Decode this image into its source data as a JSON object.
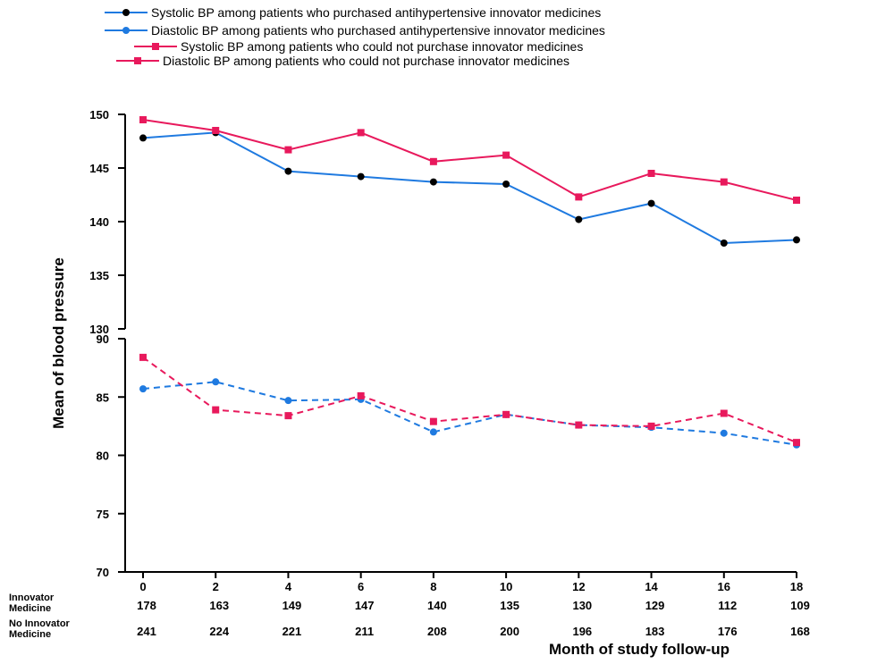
{
  "chart_data": {
    "type": "line",
    "xlabel": "Month of study follow-up",
    "ylabel": "Mean of blood pressure",
    "x": [
      0,
      2,
      4,
      6,
      8,
      10,
      12,
      14,
      16,
      18
    ],
    "xlim": [
      0,
      18
    ],
    "axis_break": true,
    "upper_ylim": [
      130,
      150
    ],
    "upper_yticks": [
      130,
      135,
      140,
      145,
      150
    ],
    "lower_ylim": [
      70,
      90
    ],
    "lower_yticks": [
      70,
      75,
      80,
      85,
      90
    ],
    "grid": false,
    "legend_position": "top",
    "series": [
      {
        "name": "Systolic BP among patients who purchased antihypertensive innovator medicines",
        "panel": "upper",
        "style": "solid",
        "line_color": "#1f7ae0",
        "marker_color": "#000000",
        "marker": "circle",
        "values": [
          147.8,
          148.3,
          144.7,
          144.2,
          143.7,
          143.5,
          140.2,
          141.7,
          138.0,
          138.3
        ]
      },
      {
        "name": "Diastolic BP among patients who purchased antihypertensive innovator medicines",
        "panel": "lower",
        "style": "dashed",
        "line_color": "#1f7ae0",
        "marker_color": "#1f7ae0",
        "marker": "circle",
        "values": [
          85.7,
          86.3,
          84.7,
          84.8,
          82.0,
          83.5,
          82.6,
          82.4,
          81.9,
          80.9
        ]
      },
      {
        "name": "Systolic BP among patients who could not purchase innovator medicines",
        "panel": "upper",
        "style": "solid",
        "line_color": "#e8195c",
        "marker_color": "#e8195c",
        "marker": "square",
        "values": [
          149.5,
          148.5,
          146.7,
          148.3,
          145.6,
          146.2,
          142.3,
          144.5,
          143.7,
          142.0
        ]
      },
      {
        "name": "Diastolic BP among patients who could not purchase innovator medicines",
        "panel": "lower",
        "style": "dashed",
        "line_color": "#e8195c",
        "marker_color": "#e8195c",
        "marker": "square",
        "values": [
          88.4,
          83.9,
          83.4,
          85.1,
          82.9,
          83.5,
          82.6,
          82.5,
          83.6,
          81.1
        ]
      }
    ],
    "count_rows": [
      {
        "label_line1": "Innovator",
        "label_line2": "Medicine",
        "counts": [
          "178",
          "163",
          "149",
          "147",
          "140",
          "135",
          "130",
          "129",
          "112",
          "109"
        ]
      },
      {
        "label_line1": "No Innovator",
        "label_line2": "Medicine",
        "counts": [
          "241",
          "224",
          "221",
          "211",
          "208",
          "200",
          "196",
          "183",
          "176",
          "168"
        ]
      }
    ]
  }
}
